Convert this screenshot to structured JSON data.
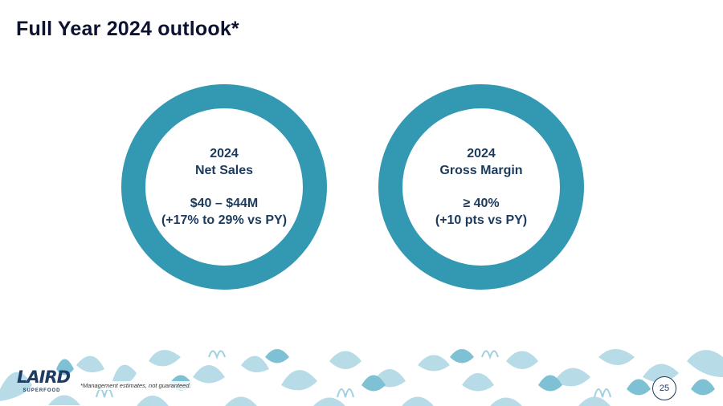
{
  "slide": {
    "title": "Full Year 2024 outlook*",
    "page_number": "25",
    "footnote": "*Management estimates, not guaranteed."
  },
  "cards": [
    {
      "line1": "2024",
      "line2": "Net Sales",
      "line3": "$40 – $44M",
      "line4": "(+17% to 29% vs PY)"
    },
    {
      "line1": "2024",
      "line2": "Gross Margin",
      "line3": "≥ 40%",
      "line4": "(+10 pts vs PY)"
    }
  ],
  "logo": {
    "name": "LAIRD",
    "tagline": "SUPERFOOD"
  },
  "colors": {
    "ring": "#3398b2",
    "text_dark": "#1c3a5c",
    "decor_light": "#b7dbe7",
    "decor_mid": "#7fc1d4"
  }
}
